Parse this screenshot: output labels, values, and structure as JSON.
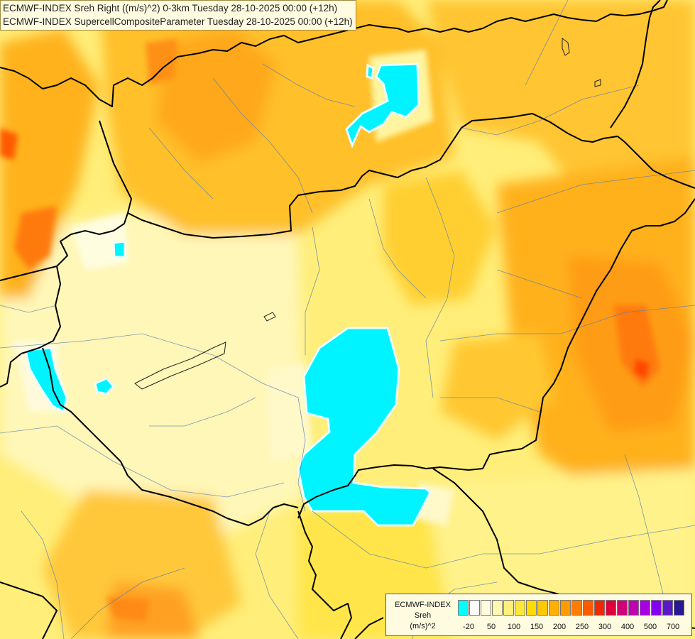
{
  "header": {
    "line1": "ECMWF-INDEX Sreh Right ((m/s)^2) 0-3km Tuesday 28-10-2025 00:00 (+12h)",
    "line2": "ECMWF-INDEX SupercellCompositeParameter Tuesday 28-10-2025 00:00 (+12h)"
  },
  "legend": {
    "line1": "ECMWF-INDEX",
    "line2": "Sreh",
    "line3": "(m/s)^2",
    "colors": [
      "#00ffff",
      "#ffffff",
      "#fffde0",
      "#fff8b0",
      "#fff07a",
      "#ffe83a",
      "#ffdc00",
      "#ffc800",
      "#ffb000",
      "#ff9a00",
      "#ff7e00",
      "#ff5a00",
      "#f02800",
      "#e0003c",
      "#d0007a",
      "#c000b0",
      "#a800e0",
      "#8400f0",
      "#5a18c8",
      "#2a1890"
    ],
    "ticks": [
      "-20",
      "50",
      "100",
      "150",
      "200",
      "250",
      "300",
      "400",
      "500",
      "700"
    ]
  }
}
